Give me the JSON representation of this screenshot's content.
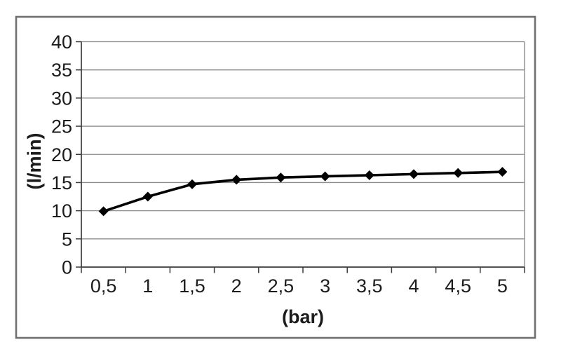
{
  "chart_data": {
    "type": "line",
    "categories": [
      "0,5",
      "1",
      "1,5",
      "2",
      "2,5",
      "3",
      "3,5",
      "4",
      "4,5",
      "5"
    ],
    "values": [
      9.9,
      12.5,
      14.7,
      15.5,
      15.9,
      16.1,
      16.3,
      16.5,
      16.7,
      16.9
    ],
    "title": "",
    "xlabel": "(bar)",
    "ylabel": "(l/min)",
    "ylim": [
      0,
      40
    ],
    "ytick_step": 5,
    "grid": "horizontal",
    "legend": "none",
    "marker": "diamond",
    "styles": {
      "line_color": "#000000",
      "marker_color": "#000000",
      "gridline_color": "#8c8c8c",
      "axis_color": "#3c3c3c",
      "text_color": "#1c1c1c",
      "figure_border_color": "#707070",
      "background": "#ffffff"
    }
  }
}
